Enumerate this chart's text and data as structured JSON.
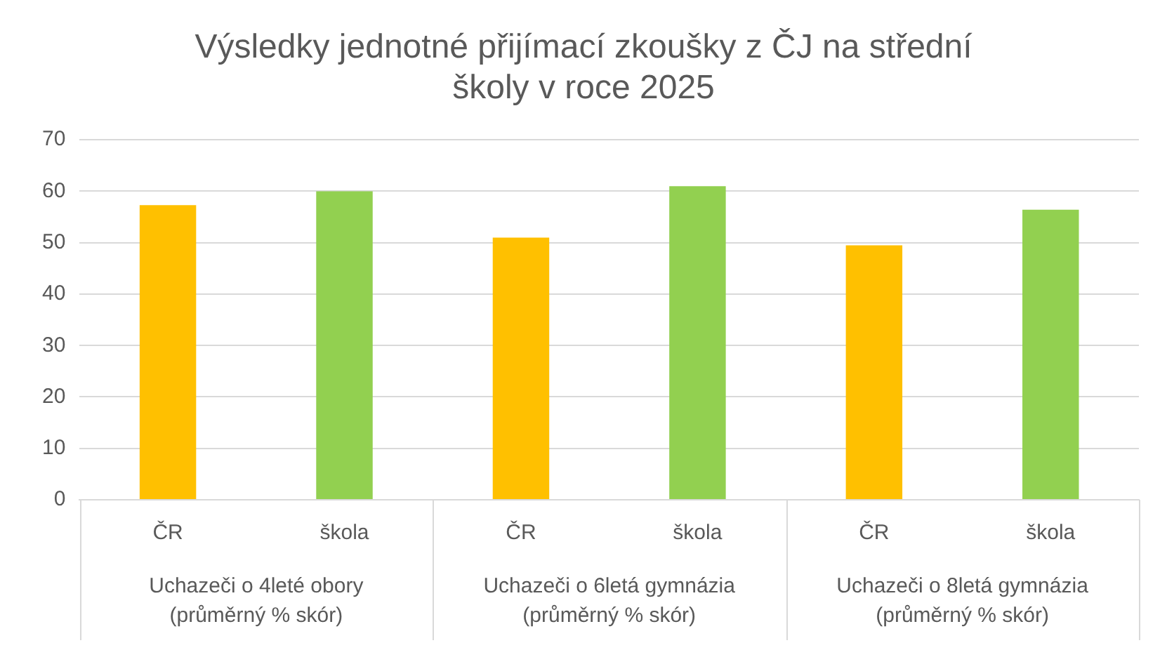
{
  "chart_data": {
    "type": "bar",
    "title": "Výsledky jednotné přijímací zkoušky z ČJ na střední\nškoly v roce 2025",
    "categories": [
      "Uchazeči o 4leté obory\n(průměrný % skór)",
      "Uchazeči o 6letá gymnázia\n(průměrný % skór)",
      "Uchazeči o 8letá gymnázia\n(průměrný % skór)"
    ],
    "series": [
      {
        "name": "ČR",
        "color": "#ffc000",
        "values": [
          57.3,
          51,
          49.5
        ]
      },
      {
        "name": "škola",
        "color": "#92d050",
        "values": [
          60,
          61,
          56.4
        ]
      }
    ],
    "ylim": [
      0,
      70
    ],
    "yticks": [
      0,
      10,
      20,
      30,
      40,
      50,
      60,
      70
    ],
    "grid": "y",
    "legend": false
  }
}
